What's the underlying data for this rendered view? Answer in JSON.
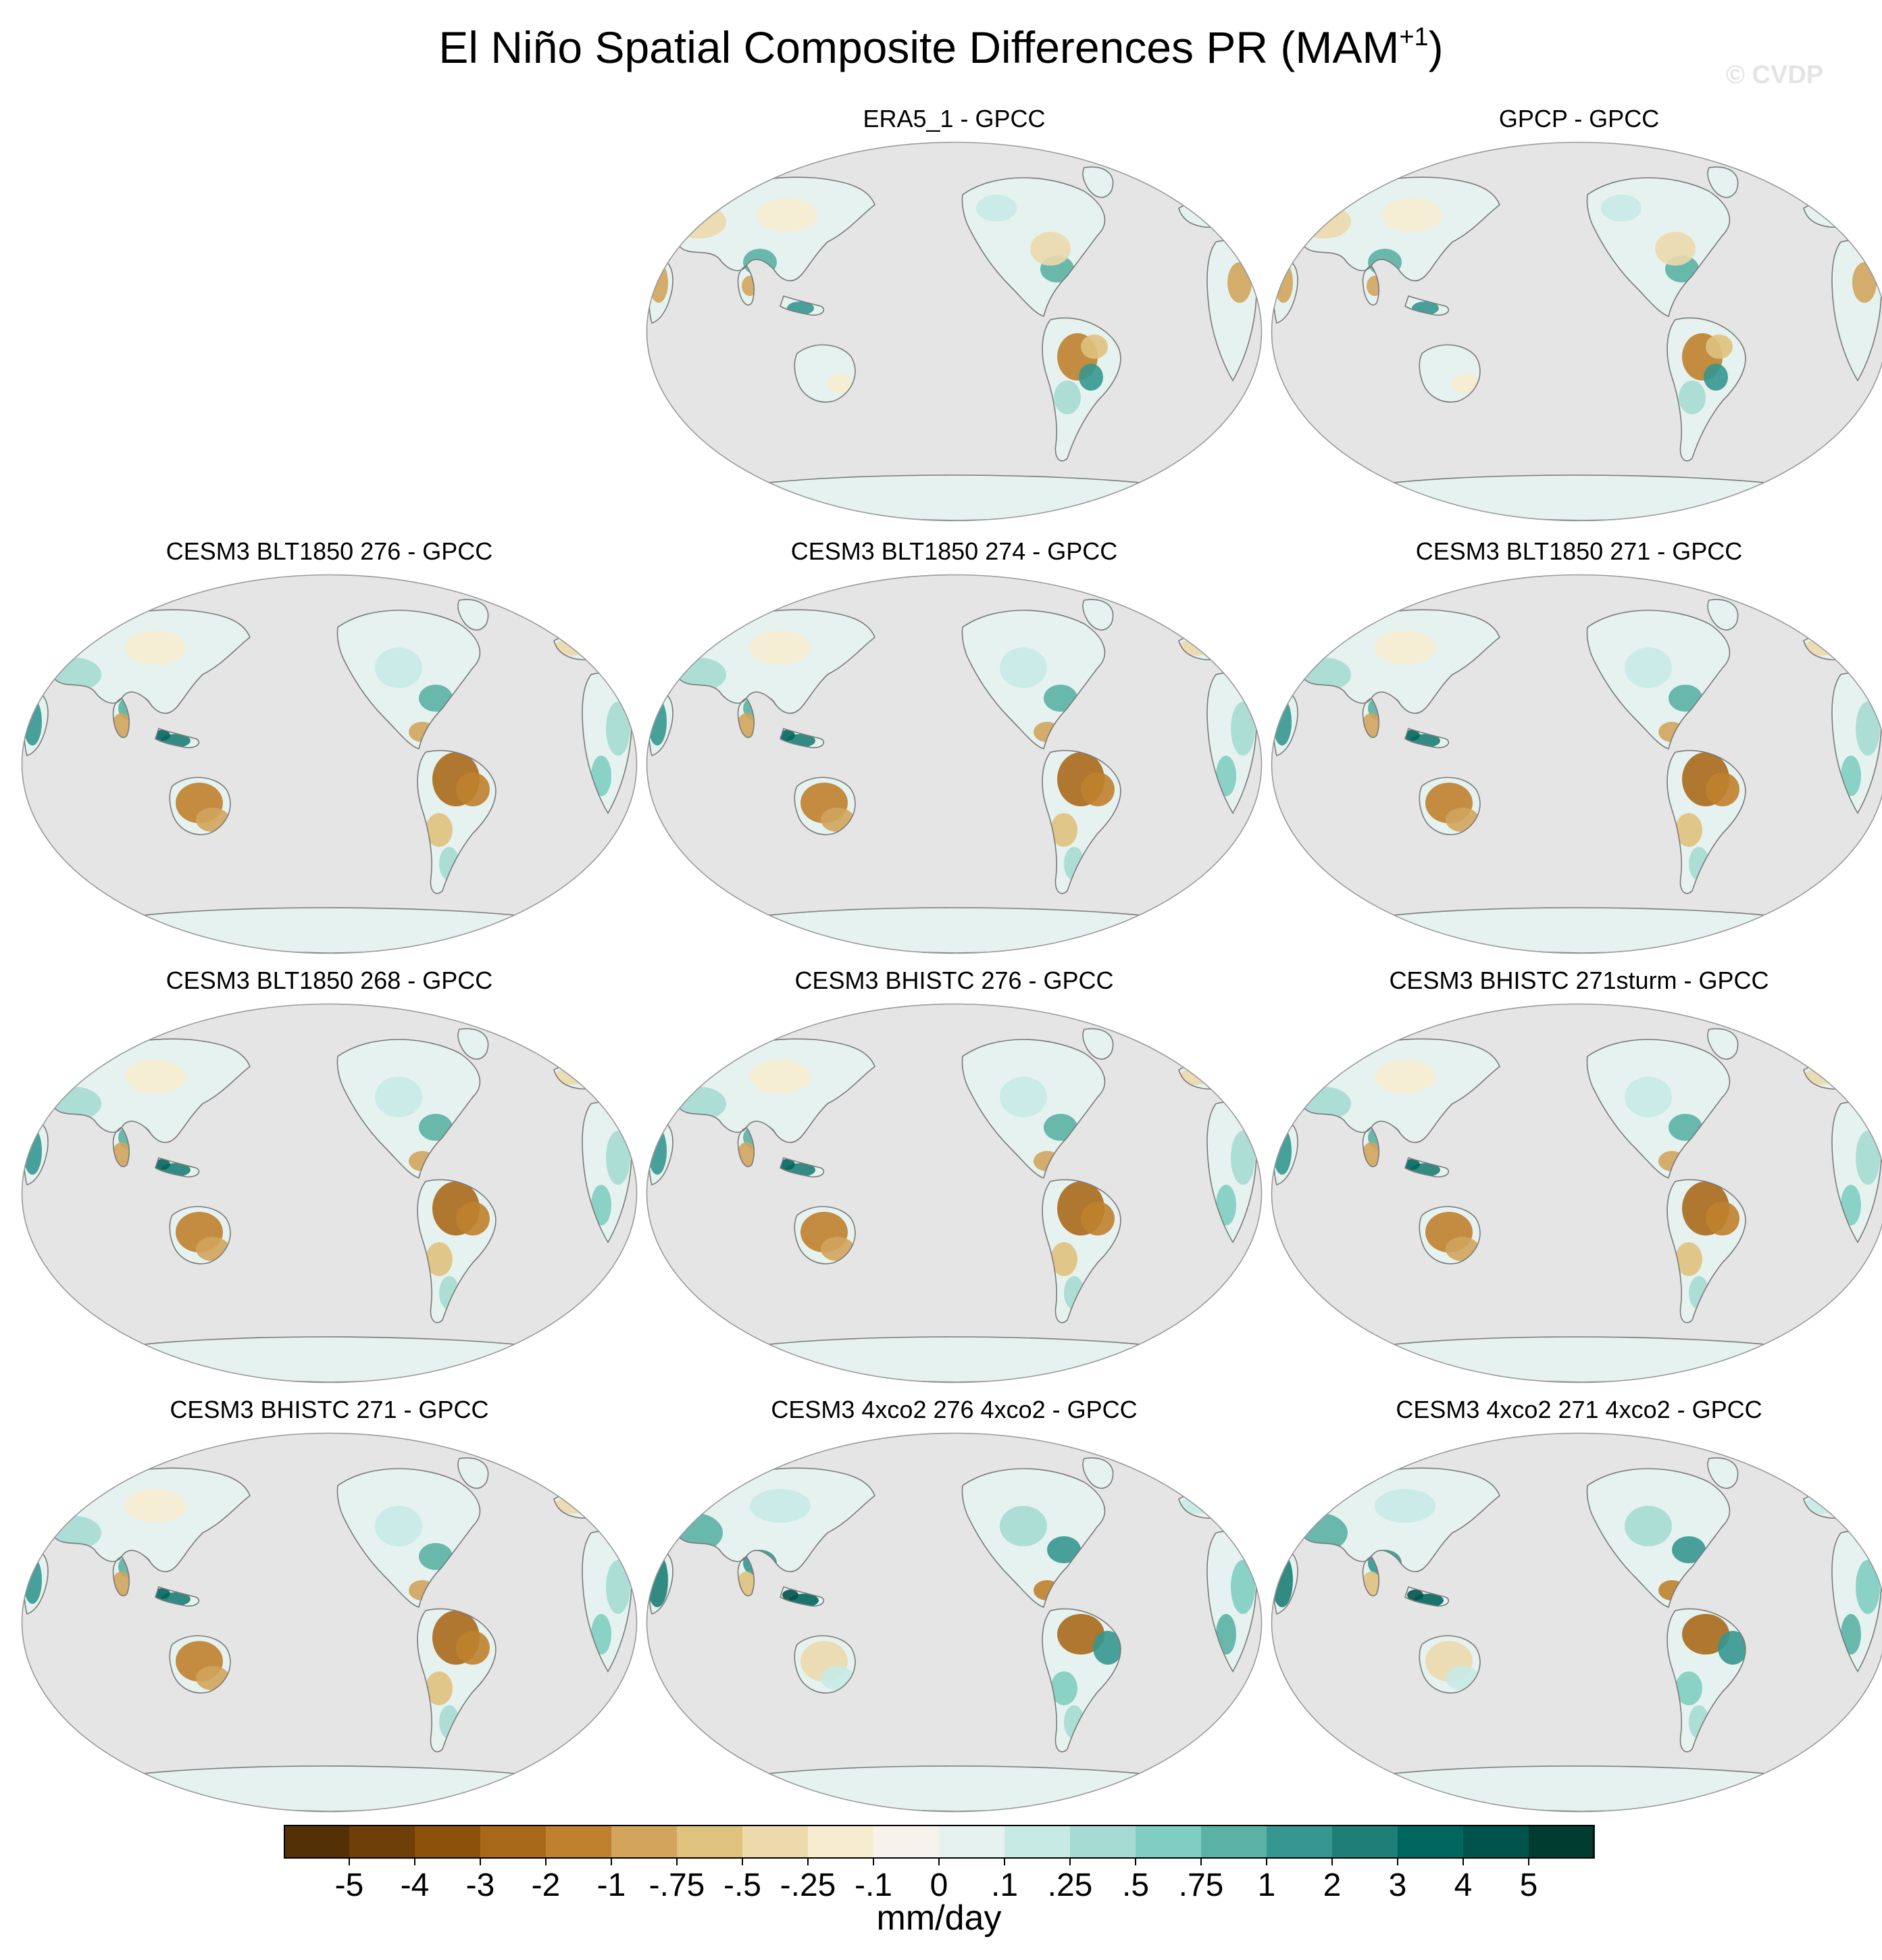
{
  "figure": {
    "title_main": "El Niño Spatial Composite Differences PR (MAM",
    "title_sup": "+1",
    "title_close": ")",
    "watermark": "© CVDP"
  },
  "panels": [
    {
      "title": "ERA5_1 - GPCC",
      "pattern": "mixed"
    },
    {
      "title": "GPCP - GPCC",
      "pattern": "mixed"
    },
    {
      "title": "CESM3 BLT1850 276 - GPCC",
      "pattern": "model"
    },
    {
      "title": "CESM3 BLT1850 274 - GPCC",
      "pattern": "model"
    },
    {
      "title": "CESM3 BLT1850 271 - GPCC",
      "pattern": "model"
    },
    {
      "title": "CESM3 BLT1850 268 - GPCC",
      "pattern": "model"
    },
    {
      "title": "CESM3 BHISTC 276 - GPCC",
      "pattern": "model"
    },
    {
      "title": "CESM3 BHISTC 271sturm - GPCC",
      "pattern": "model"
    },
    {
      "title": "CESM3 BHISTC 271 - GPCC",
      "pattern": "model"
    },
    {
      "title": "CESM3 4xco2 276 4xco2 - GPCC",
      "pattern": "model-wet"
    },
    {
      "title": "CESM3 4xco2 271 4xco2 - GPCC",
      "pattern": "model-wet"
    }
  ],
  "colorbar": {
    "units": "mm/day",
    "levels": [
      "-5",
      "-4",
      "-3",
      "-2",
      "-1",
      "-.75",
      "-.5",
      "-.25",
      "-.1",
      "0",
      ".1",
      ".25",
      ".5",
      ".75",
      "1",
      "2",
      "3",
      "4",
      "5"
    ],
    "colors": [
      "#543005",
      "#6f3f09",
      "#8c510a",
      "#a8691b",
      "#bf812d",
      "#d2a45c",
      "#dfc27d",
      "#ecd9ac",
      "#f6ecd0",
      "#f5f3ec",
      "#e6f2ef",
      "#c7eae5",
      "#a6dbd3",
      "#80cdc1",
      "#5ab2a4",
      "#35978f",
      "#1d7f76",
      "#01665e",
      "#01544c",
      "#003c30"
    ]
  },
  "map_colors": {
    "ocean": "#e5e5e5",
    "coast": "#7a7a7a",
    "outline": "#9a9a9a"
  }
}
